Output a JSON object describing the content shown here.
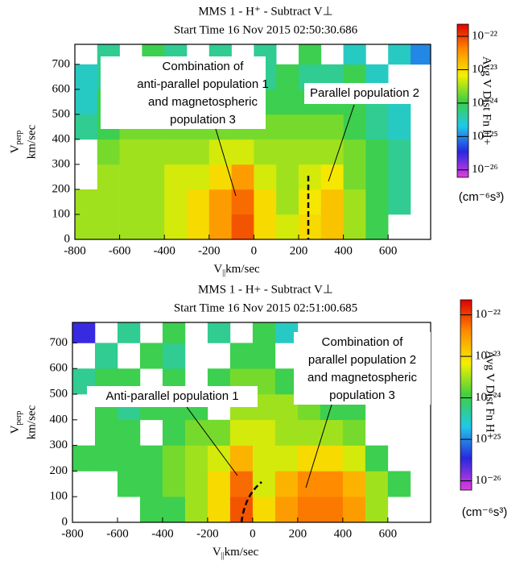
{
  "chart_data": [
    {
      "type": "heatmap",
      "title": "MMS 1 - H⁺ - Subtract V⊥",
      "subtitle": "Start Time 16 Nov 2015 02:50:30.686",
      "xlabel_symbol": "V",
      "xlabel_sub": "||",
      "xlabel_unit": "km/sec",
      "ylabel_symbol": "V",
      "ylabel_sub": "perp",
      "ylabel_unit": "km/sec",
      "xlim": [
        -800,
        790
      ],
      "ylim": [
        0,
        780
      ],
      "xticks": [
        -800,
        -600,
        -400,
        -200,
        0,
        200,
        400,
        600
      ],
      "yticks": [
        0,
        100,
        200,
        300,
        400,
        500,
        600,
        700
      ],
      "x_bins": [
        -800,
        -700,
        -600,
        -500,
        -400,
        -300,
        -200,
        -100,
        0,
        100,
        200,
        300,
        400,
        500,
        600,
        700,
        800
      ],
      "y_bins": [
        0,
        100,
        200,
        300,
        400,
        500,
        600,
        700,
        800
      ],
      "z": [
        [
          3e-24,
          3e-24,
          3e-24,
          3e-24,
          5e-24,
          1e-23,
          3e-23,
          8e-23,
          1e-23,
          5e-24,
          1e-23,
          1.5e-23,
          3e-24,
          1e-24,
          null,
          null
        ],
        [
          3e-24,
          3e-24,
          3e-24,
          3e-24,
          5e-24,
          1e-23,
          3e-23,
          6e-23,
          1e-23,
          3e-24,
          8e-24,
          1.5e-23,
          3e-24,
          1e-24,
          5e-25,
          null
        ],
        [
          null,
          3e-24,
          3e-24,
          3e-24,
          5e-24,
          5e-24,
          1e-23,
          3e-23,
          5e-24,
          3e-24,
          5e-24,
          8e-24,
          2e-24,
          1e-24,
          5e-25,
          null
        ],
        [
          null,
          2e-24,
          3e-24,
          3e-24,
          3e-24,
          3e-24,
          5e-24,
          5e-24,
          3e-24,
          3e-24,
          3e-24,
          3e-24,
          2e-24,
          1e-24,
          5e-25,
          null
        ],
        [
          5e-25,
          1e-24,
          2e-24,
          2e-24,
          2e-24,
          2e-24,
          2e-24,
          2e-24,
          2e-24,
          2e-24,
          2e-24,
          2e-24,
          1e-24,
          5e-25,
          3e-25,
          null
        ],
        [
          3e-25,
          1e-24,
          1e-24,
          1e-24,
          1e-24,
          1e-24,
          1e-24,
          1e-24,
          1e-24,
          1e-24,
          1e-24,
          1e-24,
          1e-24,
          5e-25,
          3e-25,
          null
        ],
        [
          3e-25,
          5e-25,
          1e-24,
          1e-24,
          5e-25,
          1e-24,
          null,
          1e-24,
          5e-25,
          1e-24,
          5e-25,
          5e-25,
          1e-24,
          3e-25,
          null,
          null
        ],
        [
          null,
          5e-25,
          null,
          1e-24,
          5e-25,
          null,
          5e-25,
          null,
          5e-25,
          null,
          1e-24,
          null,
          3e-25,
          null,
          3e-25,
          1e-25
        ]
      ],
      "log_color_scale": true,
      "clim": [
        6e-27,
        2.3e-22
      ],
      "colormap": [
        "#e03ce0",
        "#2828e0",
        "#20c8e8",
        "#40d040",
        "#f4f000",
        "#ff8c00",
        "#e00000"
      ],
      "cticks": [
        {
          "value": 1e-22,
          "label": "10⁻²²"
        },
        {
          "value": 1e-23,
          "label": "10⁻²³"
        },
        {
          "value": 1e-24,
          "label": "10⁻²⁴"
        },
        {
          "value": 1e-25,
          "label": "10⁻²⁵"
        },
        {
          "value": 1e-26,
          "label": "10⁻²⁶"
        }
      ],
      "colorbar_label": "Avg V Dist Fn H+",
      "colorbar_unit": "(cm⁻⁶s³)",
      "annotations": [
        {
          "lines": [
            "Combination of",
            "anti-parallel population 1",
            "and magnetospheric",
            "population 3"
          ]
        },
        {
          "lines": [
            "Parallel population 2"
          ]
        }
      ]
    },
    {
      "type": "heatmap",
      "title": "MMS 1 - H+ - Subtract V⊥",
      "subtitle": "Start Time 16 Nov 2015 02:51:00.685",
      "xlabel_symbol": "V",
      "xlabel_sub": "||",
      "xlabel_unit": "km/sec",
      "ylabel_symbol": "V",
      "ylabel_sub": "perp",
      "ylabel_unit": "km/sec",
      "xlim": [
        -800,
        790
      ],
      "ylim": [
        0,
        780
      ],
      "xticks": [
        -800,
        -600,
        -400,
        -200,
        0,
        200,
        400,
        600
      ],
      "yticks": [
        0,
        100,
        200,
        300,
        400,
        500,
        600,
        700
      ],
      "x_bins": [
        -800,
        -700,
        -600,
        -500,
        -400,
        -300,
        -200,
        -100,
        0,
        100,
        200,
        300,
        400,
        500,
        600,
        700,
        800
      ],
      "y_bins": [
        0,
        100,
        200,
        300,
        400,
        500,
        600,
        700,
        800
      ],
      "z": [
        [
          null,
          null,
          null,
          1e-24,
          1e-24,
          3e-24,
          1e-23,
          8e-23,
          1e-23,
          3e-23,
          5e-23,
          5e-23,
          3e-23,
          3e-24,
          null,
          null
        ],
        [
          null,
          null,
          1e-24,
          1e-24,
          2e-24,
          3e-24,
          1e-23,
          6e-23,
          5e-24,
          2e-23,
          4e-23,
          4e-23,
          2e-23,
          3e-24,
          1e-24,
          null
        ],
        [
          1e-24,
          1e-24,
          1e-24,
          1e-24,
          2e-24,
          3e-24,
          5e-24,
          2e-23,
          5e-24,
          5e-24,
          1e-23,
          1e-23,
          5e-24,
          1e-24,
          null,
          null
        ],
        [
          null,
          1e-24,
          1e-24,
          null,
          1e-24,
          2e-24,
          2e-24,
          5e-24,
          5e-24,
          3e-24,
          3e-24,
          3e-24,
          2e-24,
          null,
          null,
          null
        ],
        [
          null,
          1e-24,
          5e-25,
          1e-24,
          1e-24,
          1e-24,
          null,
          3e-24,
          3e-24,
          3e-24,
          2e-24,
          1e-24,
          1e-24,
          null,
          null,
          null
        ],
        [
          5e-25,
          1e-24,
          1e-24,
          null,
          1e-24,
          null,
          1e-24,
          2e-24,
          2e-24,
          1e-24,
          1e-24,
          5e-25,
          null,
          null,
          null,
          null
        ],
        [
          null,
          5e-25,
          null,
          1e-24,
          5e-25,
          null,
          null,
          1e-24,
          1e-24,
          null,
          5e-25,
          null,
          null,
          null,
          null,
          null
        ],
        [
          3e-26,
          null,
          5e-25,
          null,
          1e-24,
          null,
          5e-25,
          null,
          1e-24,
          3e-25,
          null,
          null,
          null,
          null,
          null,
          null
        ]
      ],
      "log_color_scale": true,
      "clim": [
        6e-27,
        2.3e-22
      ],
      "colormap": [
        "#e03ce0",
        "#2828e0",
        "#20c8e8",
        "#40d040",
        "#f4f000",
        "#ff8c00",
        "#e00000"
      ],
      "cticks": [
        {
          "value": 1e-22,
          "label": "10⁻²²"
        },
        {
          "value": 1e-23,
          "label": "10⁻²³"
        },
        {
          "value": 1e-24,
          "label": "10⁻²⁴"
        },
        {
          "value": 1e-25,
          "label": "10⁻²⁵"
        },
        {
          "value": 1e-26,
          "label": "10⁻²⁶"
        }
      ],
      "colorbar_label": "Avg V Dist Fn H+",
      "colorbar_unit": "(cm⁻⁶s³)",
      "annotations": [
        {
          "lines": [
            "Anti-parallel population 1"
          ]
        },
        {
          "lines": [
            "Combination of",
            "parallel population 2",
            "and magnetospheric",
            "population 3"
          ]
        }
      ]
    }
  ]
}
